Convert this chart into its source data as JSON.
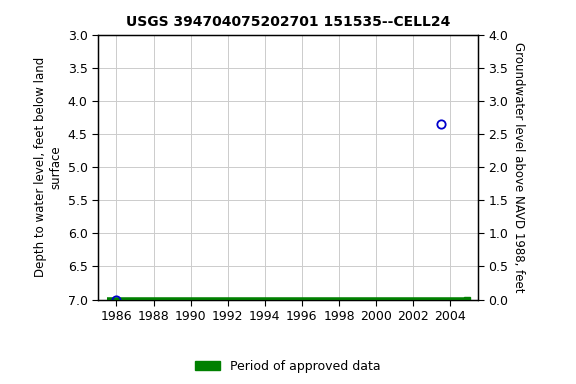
{
  "title": "USGS 394704075202701 151535--CELL24",
  "ylabel_left": "Depth to water level, feet below land\nsurface",
  "ylabel_right": "Groundwater level above NAVD 1988, feet",
  "xlim": [
    1985.0,
    2005.5
  ],
  "ylim_left": [
    3.0,
    7.0
  ],
  "ylim_right": [
    0.0,
    4.0
  ],
  "xticks": [
    1986,
    1988,
    1990,
    1992,
    1994,
    1996,
    1998,
    2000,
    2002,
    2004
  ],
  "yticks_left": [
    3.0,
    3.5,
    4.0,
    4.5,
    5.0,
    5.5,
    6.0,
    6.5,
    7.0
  ],
  "yticks_right": [
    0.0,
    0.5,
    1.0,
    1.5,
    2.0,
    2.5,
    3.0,
    3.5,
    4.0
  ],
  "data_points": [
    {
      "x": 1986.0,
      "y_left": 7.0,
      "color": "#0000cc"
    },
    {
      "x": 2003.5,
      "y_left": 4.35,
      "color": "#0000cc"
    }
  ],
  "period_bar": {
    "x_start": 1985.5,
    "x_end": 2004.9,
    "y_left": 7.0,
    "color": "#008000"
  },
  "period_marker": {
    "x": 2004.9,
    "y_left": 7.0,
    "color": "#008000"
  },
  "legend_label": "Period of approved data",
  "legend_color": "#008000",
  "background_color": "#ffffff",
  "grid_color": "#cccccc",
  "border_color": "#000000",
  "title_fontsize": 10,
  "label_fontsize": 8.5,
  "tick_fontsize": 9
}
